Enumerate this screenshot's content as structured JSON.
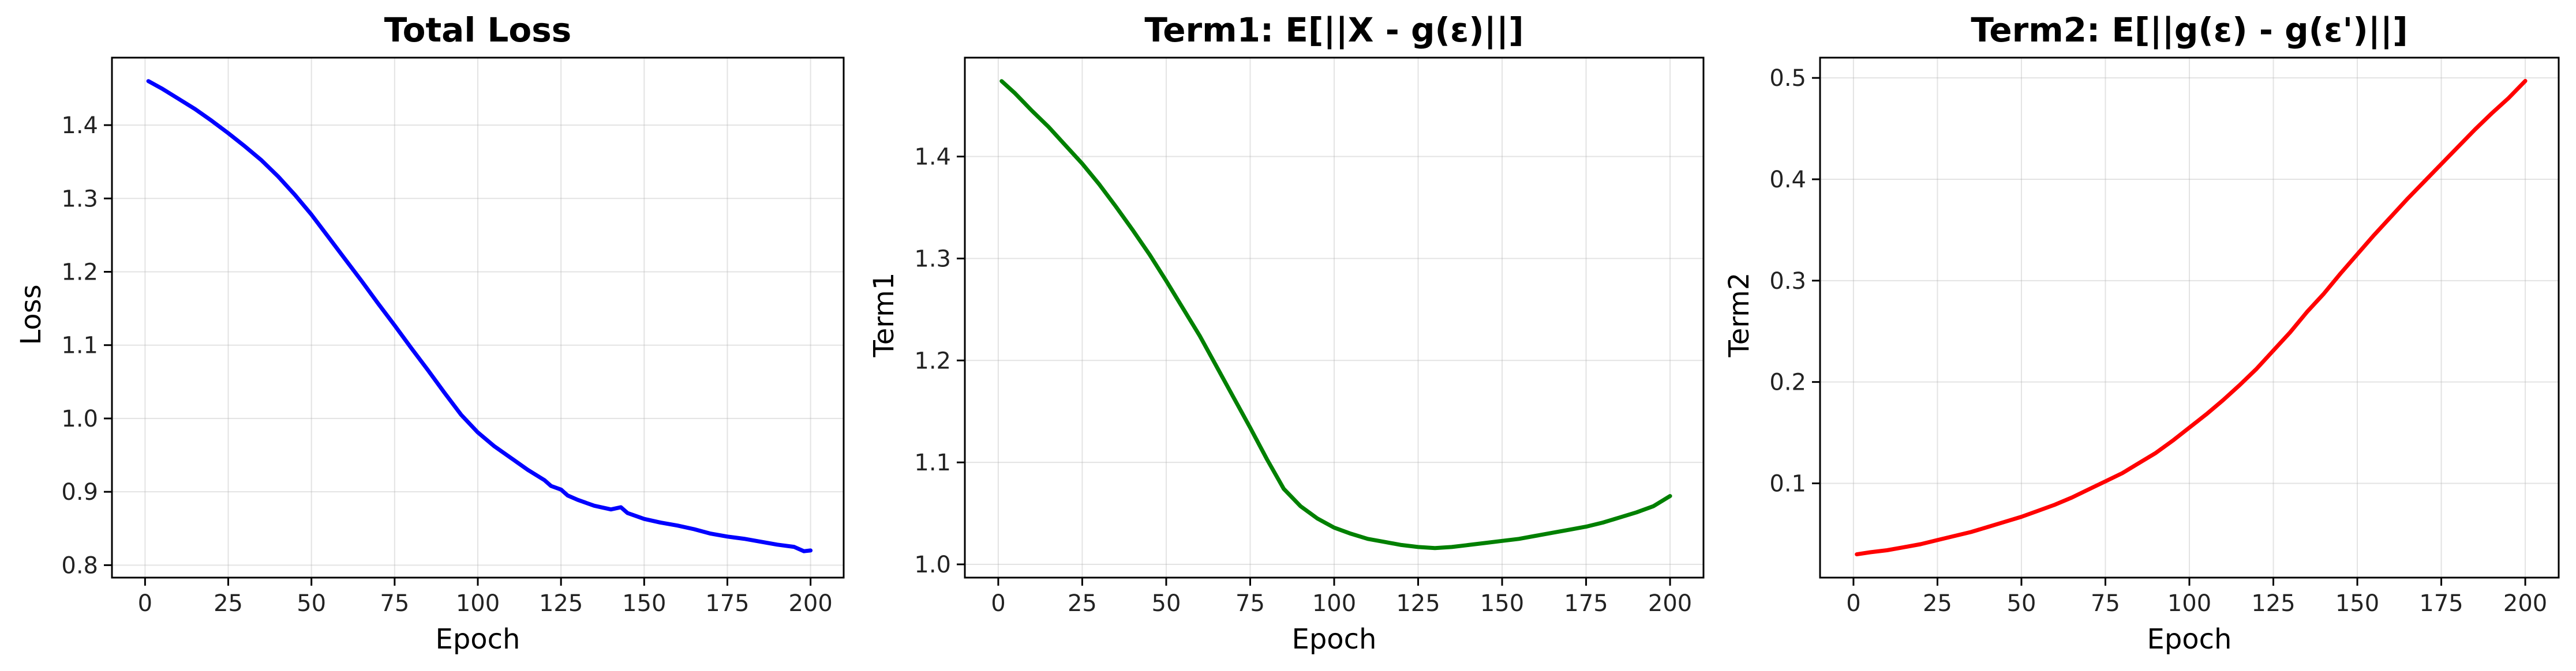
{
  "chart_data": [
    {
      "type": "line",
      "title": "Total Loss",
      "xlabel": "Epoch",
      "ylabel": "Loss",
      "xlim": [
        -9.95,
        209.95
      ],
      "ylim": [
        0.783,
        1.492
      ],
      "xticks": [
        0,
        25,
        50,
        75,
        100,
        125,
        150,
        175,
        200
      ],
      "yticks": [
        0.8,
        0.9,
        1.0,
        1.1,
        1.2,
        1.3,
        1.4
      ],
      "ytick_labels": [
        "0.8",
        "0.9",
        "1.0",
        "1.1",
        "1.2",
        "1.3",
        "1.4"
      ],
      "grid": true,
      "color": "#0000ff",
      "x": [
        1,
        5,
        10,
        15,
        20,
        25,
        30,
        35,
        40,
        45,
        50,
        55,
        60,
        65,
        70,
        75,
        80,
        85,
        90,
        95,
        100,
        105,
        110,
        115,
        120,
        122,
        125,
        127,
        130,
        135,
        140,
        143,
        145,
        150,
        155,
        160,
        165,
        170,
        175,
        180,
        185,
        190,
        195,
        198,
        200
      ],
      "y": [
        1.46,
        1.45,
        1.436,
        1.422,
        1.406,
        1.389,
        1.371,
        1.352,
        1.33,
        1.305,
        1.278,
        1.248,
        1.218,
        1.188,
        1.157,
        1.127,
        1.096,
        1.066,
        1.035,
        1.005,
        0.981,
        0.962,
        0.946,
        0.93,
        0.916,
        0.908,
        0.903,
        0.895,
        0.889,
        0.881,
        0.876,
        0.879,
        0.871,
        0.863,
        0.858,
        0.854,
        0.849,
        0.843,
        0.839,
        0.836,
        0.832,
        0.828,
        0.825,
        0.819,
        0.82
      ]
    },
    {
      "type": "line",
      "title": "Term1: E[||X - g(ε)||]",
      "xlabel": "Epoch",
      "ylabel": "Term1",
      "xlim": [
        -9.95,
        209.95
      ],
      "ylim": [
        0.987,
        1.497
      ],
      "xticks": [
        0,
        25,
        50,
        75,
        100,
        125,
        150,
        175,
        200
      ],
      "yticks": [
        1.0,
        1.1,
        1.2,
        1.3,
        1.4
      ],
      "ytick_labels": [
        "1.0",
        "1.1",
        "1.2",
        "1.3",
        "1.4"
      ],
      "grid": true,
      "color": "#008000",
      "x": [
        1,
        5,
        10,
        15,
        20,
        25,
        30,
        35,
        40,
        45,
        50,
        55,
        60,
        65,
        70,
        75,
        80,
        85,
        90,
        95,
        100,
        105,
        110,
        115,
        120,
        125,
        130,
        135,
        140,
        145,
        150,
        155,
        160,
        165,
        170,
        175,
        180,
        185,
        190,
        195,
        200
      ],
      "y": [
        1.474,
        1.462,
        1.445,
        1.429,
        1.411,
        1.393,
        1.373,
        1.351,
        1.328,
        1.304,
        1.278,
        1.251,
        1.224,
        1.194,
        1.164,
        1.134,
        1.103,
        1.074,
        1.057,
        1.045,
        1.036,
        1.03,
        1.025,
        1.022,
        1.019,
        1.017,
        1.016,
        1.017,
        1.019,
        1.021,
        1.023,
        1.025,
        1.028,
        1.031,
        1.034,
        1.037,
        1.041,
        1.046,
        1.051,
        1.057,
        1.067
      ]
    },
    {
      "type": "line",
      "title": "Term2: E[||g(ε) - g(ε')||]",
      "xlabel": "Epoch",
      "ylabel": "Term2",
      "xlim": [
        -9.95,
        209.95
      ],
      "ylim": [
        0.007,
        0.52
      ],
      "xticks": [
        0,
        25,
        50,
        75,
        100,
        125,
        150,
        175,
        200
      ],
      "yticks": [
        0.1,
        0.2,
        0.3,
        0.4,
        0.5
      ],
      "ytick_labels": [
        "0.1",
        "0.2",
        "0.3",
        "0.4",
        "0.5"
      ],
      "grid": true,
      "color": "#ff0000",
      "x": [
        1,
        5,
        10,
        15,
        20,
        25,
        30,
        35,
        40,
        45,
        50,
        55,
        60,
        65,
        70,
        75,
        80,
        85,
        90,
        95,
        100,
        105,
        110,
        115,
        120,
        125,
        130,
        135,
        140,
        145,
        150,
        155,
        160,
        165,
        170,
        175,
        180,
        185,
        190,
        195,
        200
      ],
      "y": [
        0.03,
        0.032,
        0.034,
        0.037,
        0.04,
        0.044,
        0.048,
        0.052,
        0.057,
        0.062,
        0.067,
        0.073,
        0.079,
        0.086,
        0.094,
        0.102,
        0.11,
        0.12,
        0.13,
        0.142,
        0.155,
        0.168,
        0.182,
        0.197,
        0.213,
        0.231,
        0.249,
        0.269,
        0.287,
        0.307,
        0.326,
        0.345,
        0.363,
        0.381,
        0.398,
        0.415,
        0.432,
        0.449,
        0.465,
        0.48,
        0.497
      ]
    }
  ]
}
